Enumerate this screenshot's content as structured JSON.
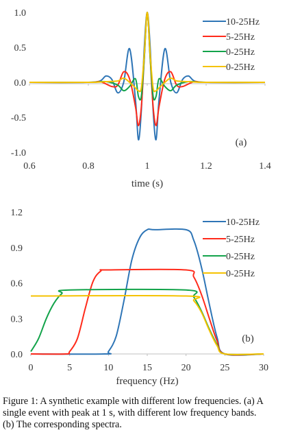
{
  "caption": {
    "line1": "Figure 1: A synthetic example with different low frequencies. (a) A",
    "line2": "single event with peak at 1 s, with different low frequency bands.",
    "line3": "(b) The corresponding spectra."
  },
  "chart_data": [
    {
      "type": "line",
      "title": "",
      "panel_label": "(a)",
      "xlabel": "time (s)",
      "ylabel": "",
      "xlim": [
        0.6,
        1.4
      ],
      "ylim": [
        -1.0,
        1.0
      ],
      "x_ticks": [
        "0.6",
        "0.8",
        "1",
        "1.2",
        "1.4"
      ],
      "y_ticks": [
        "1.0",
        "0.5",
        "0.0",
        "-0.5",
        "-1.0"
      ],
      "grid": false,
      "legend_position": "top-right",
      "series": [
        {
          "name": "10-25Hz",
          "color": "#2e75b6",
          "x": [
            0.6,
            0.8,
            0.84,
            0.86,
            0.88,
            0.9,
            0.92,
            0.94,
            0.96,
            0.97,
            0.98,
            0.99,
            1.0,
            1.01,
            1.02,
            1.03,
            1.04,
            1.06,
            1.08,
            1.1,
            1.12,
            1.14,
            1.16,
            1.2,
            1.4
          ],
          "y": [
            0.0,
            0.0,
            0.02,
            0.09,
            0.04,
            -0.15,
            0.0,
            0.48,
            -0.25,
            -0.82,
            -0.4,
            0.5,
            1.0,
            0.5,
            -0.4,
            -0.82,
            -0.25,
            0.48,
            0.0,
            -0.15,
            0.04,
            0.09,
            0.02,
            0.0,
            0.0
          ]
        },
        {
          "name": "5-25Hz",
          "color": "#ff2a1a",
          "x": [
            0.6,
            0.8,
            0.84,
            0.88,
            0.9,
            0.92,
            0.94,
            0.96,
            0.97,
            0.98,
            0.99,
            1.0,
            1.01,
            1.02,
            1.03,
            1.04,
            1.06,
            1.08,
            1.1,
            1.12,
            1.16,
            1.2,
            1.4
          ],
          "y": [
            0.0,
            0.0,
            0.01,
            -0.06,
            -0.04,
            0.15,
            0.05,
            -0.35,
            -0.62,
            -0.35,
            0.35,
            1.0,
            0.35,
            -0.35,
            -0.62,
            -0.35,
            0.05,
            0.15,
            -0.04,
            -0.06,
            0.01,
            0.0,
            0.0
          ]
        },
        {
          "name": "0-25Hz",
          "color": "#12a34a",
          "x": [
            0.6,
            0.8,
            0.86,
            0.9,
            0.92,
            0.94,
            0.96,
            0.97,
            0.98,
            0.99,
            1.0,
            1.01,
            1.02,
            1.03,
            1.04,
            1.06,
            1.08,
            1.1,
            1.14,
            1.2,
            1.4
          ],
          "y": [
            0.0,
            0.0,
            0.01,
            -0.04,
            -0.12,
            -0.06,
            0.05,
            -0.2,
            -0.2,
            0.35,
            1.0,
            0.35,
            -0.2,
            -0.2,
            0.05,
            -0.06,
            -0.12,
            -0.04,
            0.01,
            0.0,
            0.0
          ]
        },
        {
          "name": "0-25Hz",
          "color": "#f5c200",
          "x": [
            0.6,
            0.8,
            0.86,
            0.9,
            0.92,
            0.94,
            0.96,
            0.97,
            0.98,
            0.99,
            1.0,
            1.01,
            1.02,
            1.03,
            1.04,
            1.06,
            1.08,
            1.1,
            1.14,
            1.2,
            1.4
          ],
          "y": [
            0.0,
            0.0,
            0.01,
            0.02,
            0.06,
            0.0,
            -0.08,
            -0.12,
            -0.08,
            0.4,
            1.0,
            0.4,
            -0.08,
            -0.12,
            -0.08,
            0.0,
            0.06,
            0.02,
            0.01,
            0.0,
            0.0
          ]
        }
      ]
    },
    {
      "type": "line",
      "title": "",
      "panel_label": "(b)",
      "xlabel": "frequency (Hz)",
      "ylabel": "",
      "xlim": [
        0,
        30
      ],
      "ylim": [
        0,
        1.2
      ],
      "x_ticks": [
        "0",
        "5",
        "10",
        "15",
        "20",
        "25",
        "30"
      ],
      "y_ticks": [
        "1.2",
        "0.9",
        "0.6",
        "0.3",
        "0.0"
      ],
      "grid": false,
      "legend_position": "top-right",
      "series": [
        {
          "name": "10-25Hz",
          "color": "#2e75b6",
          "x": [
            0,
            9.5,
            10,
            11,
            12,
            13,
            14,
            15,
            16,
            20,
            21,
            22,
            23,
            24,
            25,
            30
          ],
          "y": [
            0.0,
            0.0,
            0.02,
            0.15,
            0.45,
            0.79,
            0.98,
            1.05,
            1.05,
            1.05,
            0.96,
            0.73,
            0.42,
            0.14,
            0.0,
            0.0
          ]
        },
        {
          "name": "5-25Hz",
          "color": "#ff2a1a",
          "x": [
            0,
            4.5,
            5,
            6,
            7,
            8,
            9,
            10,
            20,
            21,
            22,
            23,
            24,
            25,
            30
          ],
          "y": [
            0.0,
            0.0,
            0.02,
            0.13,
            0.38,
            0.61,
            0.7,
            0.71,
            0.71,
            0.65,
            0.5,
            0.3,
            0.11,
            0.0,
            0.0
          ]
        },
        {
          "name": "0-25Hz",
          "color": "#12a34a",
          "x": [
            0,
            1,
            2,
            3,
            4,
            5,
            20,
            21,
            22,
            23,
            24,
            25,
            30
          ],
          "y": [
            0.02,
            0.13,
            0.3,
            0.43,
            0.51,
            0.54,
            0.54,
            0.48,
            0.36,
            0.21,
            0.08,
            0.0,
            0.0
          ]
        },
        {
          "name": "0-25Hz",
          "color": "#f5c200",
          "x": [
            0,
            20,
            21,
            22,
            23,
            24,
            25,
            30
          ],
          "y": [
            0.49,
            0.49,
            0.45,
            0.35,
            0.2,
            0.07,
            0.0,
            0.0
          ]
        }
      ]
    }
  ]
}
